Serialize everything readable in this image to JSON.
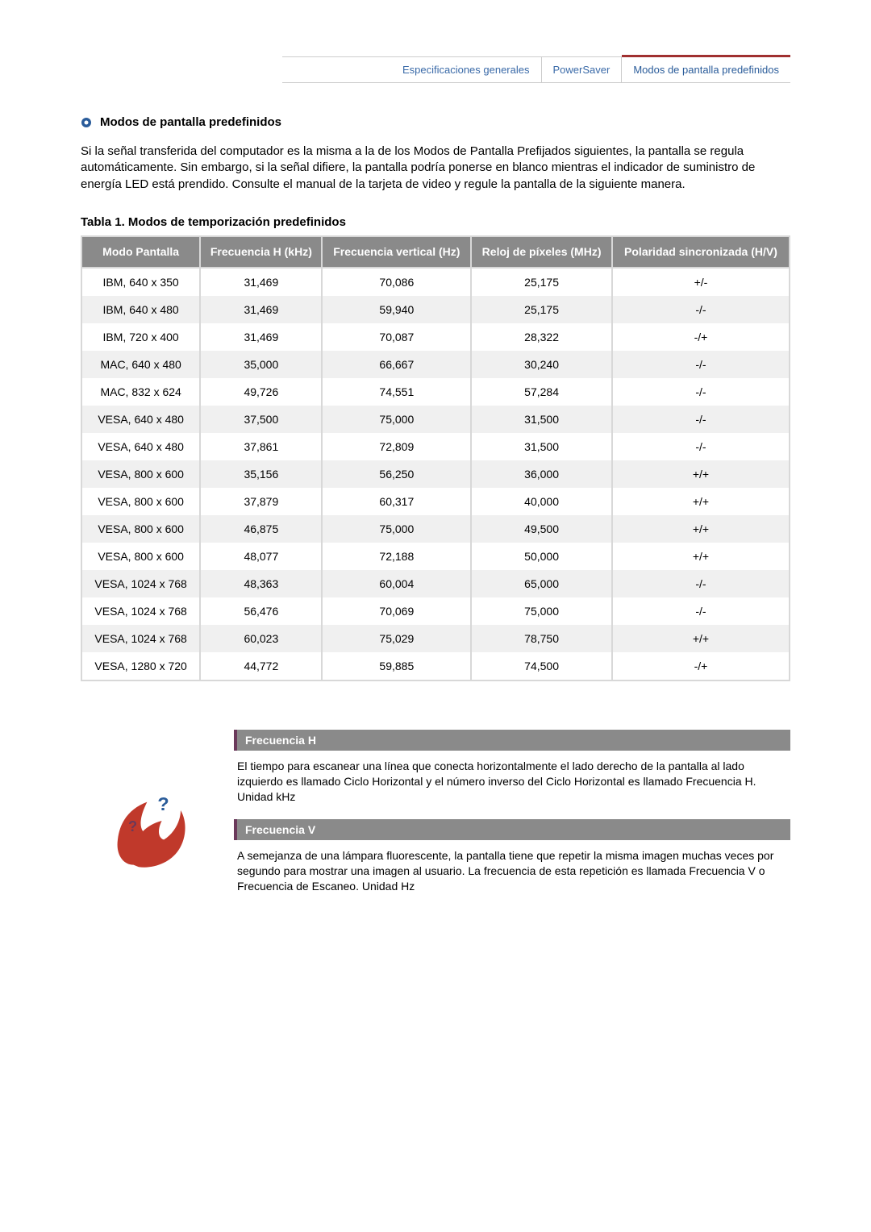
{
  "tabs": {
    "general": "Especificaciones generales",
    "powersaver": "PowerSaver",
    "preset": "Modos de pantalla predefinidos"
  },
  "section": {
    "title": "Modos de pantalla predefinidos",
    "intro": "Si la señal transferida del computador es la misma a la de los Modos de Pantalla Prefijados siguientes, la pantalla se regula automáticamente. Sin embargo, si la señal difiere, la pantalla podría ponerse en blanco mientras el indicador de suministro de energía LED está prendido. Consulte el manual de la tarjeta de video y regule la pantalla de la siguiente manera."
  },
  "table": {
    "caption": "Tabla 1. Modos de temporización predefinidos",
    "columns": [
      "Modo Pantalla",
      "Frecuencia H (kHz)",
      "Frecuencia vertical (Hz)",
      "Reloj de píxeles (MHz)",
      "Polaridad sincronizada (H/V)"
    ],
    "rows": [
      [
        "IBM, 640 x 350",
        "31,469",
        "70,086",
        "25,175",
        "+/-"
      ],
      [
        "IBM, 640 x 480",
        "31,469",
        "59,940",
        "25,175",
        "-/-"
      ],
      [
        "IBM, 720 x 400",
        "31,469",
        "70,087",
        "28,322",
        "-/+"
      ],
      [
        "MAC, 640 x 480",
        "35,000",
        "66,667",
        "30,240",
        "-/-"
      ],
      [
        "MAC, 832 x 624",
        "49,726",
        "74,551",
        "57,284",
        "-/-"
      ],
      [
        "VESA, 640 x 480",
        "37,500",
        "75,000",
        "31,500",
        "-/-"
      ],
      [
        "VESA, 640 x 480",
        "37,861",
        "72,809",
        "31,500",
        "-/-"
      ],
      [
        "VESA, 800 x 600",
        "35,156",
        "56,250",
        "36,000",
        "+/+"
      ],
      [
        "VESA, 800 x 600",
        "37,879",
        "60,317",
        "40,000",
        "+/+"
      ],
      [
        "VESA, 800 x 600",
        "46,875",
        "75,000",
        "49,500",
        "+/+"
      ],
      [
        "VESA, 800 x 600",
        "48,077",
        "72,188",
        "50,000",
        "+/+"
      ],
      [
        "VESA, 1024 x 768",
        "48,363",
        "60,004",
        "65,000",
        "-/-"
      ],
      [
        "VESA, 1024 x 768",
        "56,476",
        "70,069",
        "75,000",
        "-/-"
      ],
      [
        "VESA, 1024 x 768",
        "60,023",
        "75,029",
        "78,750",
        "+/+"
      ],
      [
        "VESA, 1280 x 720",
        "44,772",
        "59,885",
        "74,500",
        "-/+"
      ]
    ]
  },
  "defs": {
    "freqH": {
      "title": "Frecuencia H",
      "body": "El tiempo para escanear una línea que conecta horizontalmente el lado derecho de la pantalla al lado izquierdo es llamado Ciclo Horizontal y el número inverso del Ciclo Horizontal es llamado Frecuencia H. Unidad kHz"
    },
    "freqV": {
      "title": "Frecuencia V",
      "body": "A semejanza de una lámpara fluorescente, la pantalla tiene que repetir la misma imagen muchas veces por segundo para mostrar una imagen al usuario. La frecuencia de esta repetición es llamada Frecuencia V o Frecuencia de Escaneo. Unidad Hz"
    }
  },
  "style": {
    "header_bg": "#8a8a8a",
    "header_fg": "#ffffff",
    "row_alt_bg": "#f0f0f0",
    "border_color": "#d8d8d8",
    "accent_border": "#6a395a",
    "tab_active_border": "#a03030",
    "tab_text": "#2a5c9a"
  }
}
